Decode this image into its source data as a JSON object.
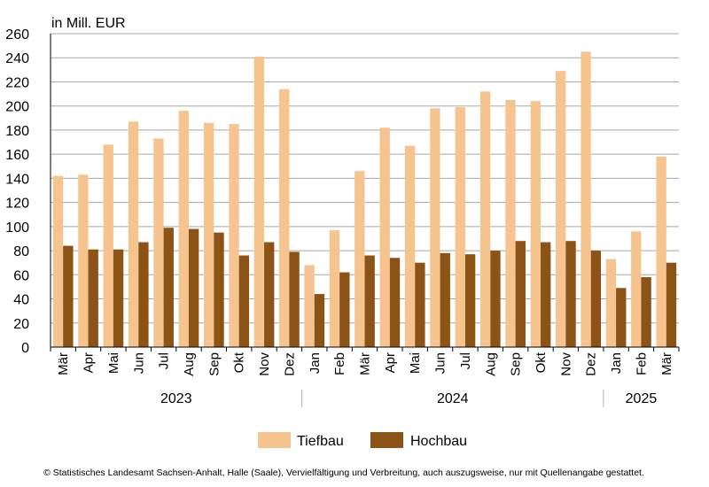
{
  "chart_data": {
    "type": "bar",
    "unit_label": "in Mill. EUR",
    "categories": [
      "Mär",
      "Apr",
      "Mai",
      "Jun",
      "Jul",
      "Aug",
      "Sep",
      "Okt",
      "Nov",
      "Dez",
      "Jan",
      "Feb",
      "Mär",
      "Apr",
      "Mai",
      "Jun",
      "Jul",
      "Aug",
      "Sep",
      "Okt",
      "Nov",
      "Dez",
      "Jan",
      "Feb",
      "Mär"
    ],
    "years": [
      {
        "label": "2023",
        "start": 0,
        "end": 9
      },
      {
        "label": "2024",
        "start": 10,
        "end": 21
      },
      {
        "label": "2025",
        "start": 22,
        "end": 24
      }
    ],
    "series": [
      {
        "name": "Tiefbau",
        "color": "#f5c48f",
        "values": [
          142,
          143,
          168,
          187,
          173,
          196,
          186,
          185,
          241,
          214,
          68,
          97,
          146,
          182,
          167,
          198,
          199,
          212,
          205,
          204,
          229,
          245,
          73,
          96,
          158
        ]
      },
      {
        "name": "Hochbau",
        "color": "#8b5316",
        "values": [
          84,
          81,
          81,
          87,
          99,
          98,
          95,
          76,
          87,
          79,
          44,
          62,
          76,
          74,
          70,
          78,
          77,
          80,
          88,
          87,
          88,
          80,
          49,
          58,
          70
        ]
      }
    ],
    "ylim": [
      0,
      260
    ],
    "yticks": [
      0,
      20,
      40,
      60,
      80,
      100,
      120,
      140,
      160,
      180,
      200,
      220,
      240,
      260
    ],
    "grid": true,
    "legend_position": "bottom"
  },
  "footer": "© Statistisches Landesamt Sachsen-Anhalt, Halle (Saale), Vervielfältigung und Verbreitung, auch auszugsweise, nur mit Quellenangabe gestattet."
}
